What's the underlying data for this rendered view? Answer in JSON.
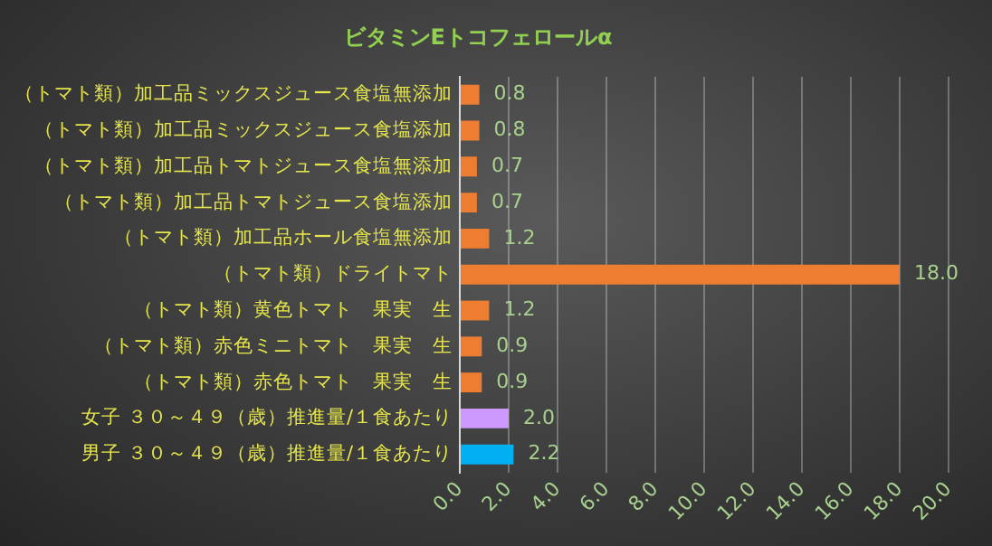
{
  "chart_data": {
    "type": "bar",
    "orientation": "horizontal",
    "title": "ビタミンEトコフェロールα",
    "categories": [
      "（トマト類）加工品ミックスジュース食塩無添加",
      "（トマト類）加工品ミックスジュース食塩添加",
      "（トマト類）加工品トマトジュース食塩無添加",
      "（トマト類）加工品トマトジュース食塩添加",
      "（トマト類）加工品ホール食塩無添加",
      "（トマト類）ドライトマト",
      "（トマト類）黄色トマト　果実　生",
      "（トマト類）赤色ミニトマト　果実　生",
      "（トマト類）赤色トマト　果実　生",
      "女子 ３０～４９（歳）推進量/１食あたり",
      "男子 ３０～４９（歳）推進量/１食あたり"
    ],
    "values": [
      0.8,
      0.8,
      0.7,
      0.7,
      1.2,
      18.0,
      1.2,
      0.9,
      0.9,
      2.0,
      2.2
    ],
    "colors": [
      "#ed7d31",
      "#ed7d31",
      "#ed7d31",
      "#ed7d31",
      "#ed7d31",
      "#ed7d31",
      "#ed7d31",
      "#ed7d31",
      "#ed7d31",
      "#cc99ff",
      "#00b0f0"
    ],
    "value_labels": [
      "0.8",
      "0.8",
      "0.7",
      "0.7",
      "1.2",
      "18.0",
      "1.2",
      "0.9",
      "0.9",
      "2.0",
      "2.2"
    ],
    "xlim": [
      0,
      20
    ],
    "xticks": [
      {
        "value": 0,
        "label": "0.0"
      },
      {
        "value": 2,
        "label": "2.0"
      },
      {
        "value": 4,
        "label": "4.0"
      },
      {
        "value": 6,
        "label": "6.0"
      },
      {
        "value": 8,
        "label": "8.0"
      },
      {
        "value": 10,
        "label": "10.0"
      },
      {
        "value": 12,
        "label": "12.0"
      },
      {
        "value": 14,
        "label": "14.0"
      },
      {
        "value": 16,
        "label": "16.0"
      },
      {
        "value": 18,
        "label": "18.0"
      },
      {
        "value": 20,
        "label": "20.0"
      }
    ],
    "grid": "x",
    "legend": false
  }
}
